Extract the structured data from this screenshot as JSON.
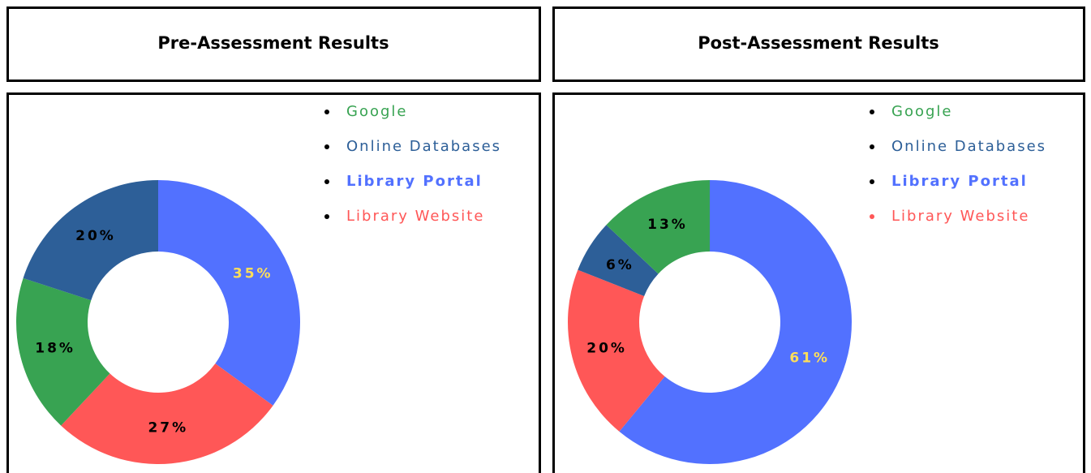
{
  "chart_data": [
    {
      "type": "donut",
      "title": "Pre-Assessment Results",
      "categories": [
        "Library Portal",
        "Library Website",
        "Google",
        "Online Databases"
      ],
      "values": [
        35,
        27,
        18,
        20
      ],
      "value_labels": [
        "35%",
        "27%",
        "18%",
        "20%"
      ],
      "colors": [
        "#5271ff",
        "#ff5757",
        "#38a352",
        "#2d5f98"
      ],
      "value_label_colors": [
        "#ffde59",
        "#000000",
        "#000000",
        "#000000"
      ],
      "legend": [
        "Google",
        "Online Databases",
        "Library Portal",
        "Library Website"
      ]
    },
    {
      "type": "donut",
      "title": "Post-Assessment Results",
      "categories": [
        "Library Portal",
        "Library Website",
        "Online Databases",
        "Google"
      ],
      "values": [
        61,
        20,
        6,
        13
      ],
      "value_labels": [
        "61%",
        "20%",
        "6%",
        "13%"
      ],
      "colors": [
        "#5271ff",
        "#ff5757",
        "#2d5f98",
        "#38a352"
      ],
      "value_label_colors": [
        "#ffde59",
        "#000000",
        "#000000",
        "#000000"
      ],
      "legend": [
        "Google",
        "Online Databases",
        "Library Portal",
        "Library Website"
      ]
    }
  ]
}
